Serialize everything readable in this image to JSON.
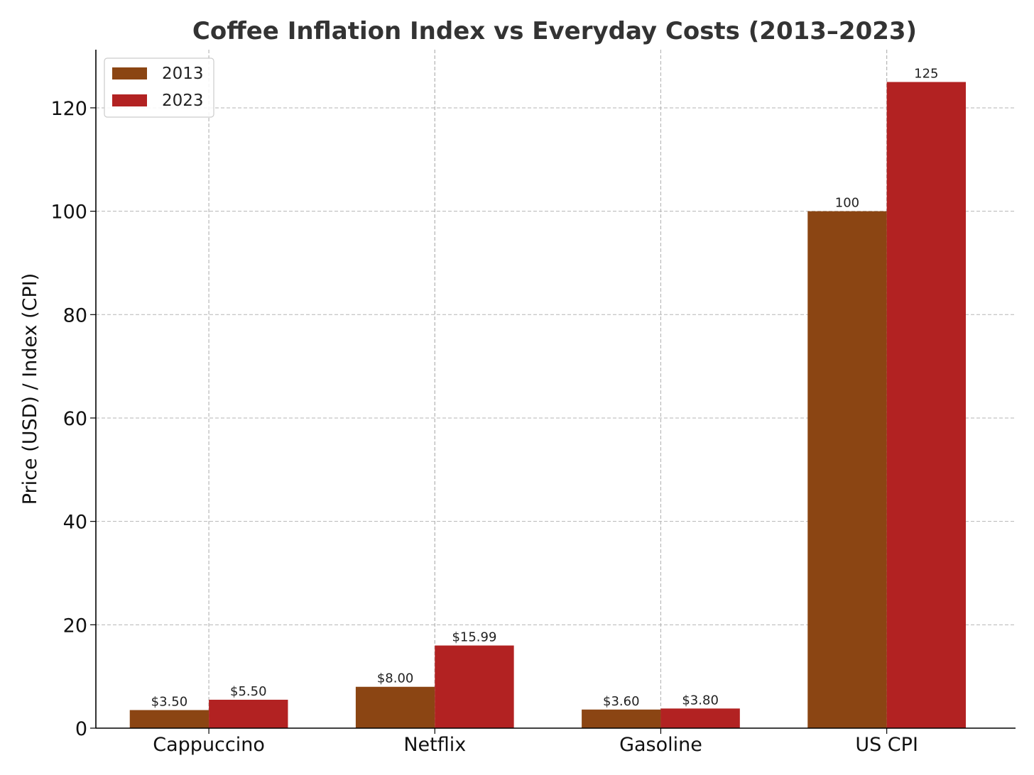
{
  "chart_data": {
    "type": "bar",
    "title": "Coffee Inflation Index vs Everyday Costs (2013–2023)",
    "xlabel": "",
    "ylabel": "Price (USD) / Index (CPI)",
    "categories": [
      "Cappuccino",
      "Netflix",
      "Gasoline",
      "US CPI"
    ],
    "series": [
      {
        "name": "2013",
        "color": "#8b4513",
        "values": [
          3.5,
          8.0,
          3.6,
          100
        ],
        "labels": [
          "$3.50",
          "$8.00",
          "$3.60",
          "100"
        ]
      },
      {
        "name": "2023",
        "color": "#b22222",
        "values": [
          5.5,
          15.99,
          3.8,
          125
        ],
        "labels": [
          "$5.50",
          "$15.99",
          "$3.80",
          "125"
        ]
      }
    ],
    "ylim": [
      0,
      131.25
    ],
    "yticks": [
      0,
      20,
      40,
      60,
      80,
      100,
      120
    ],
    "grid": true,
    "legend_position": "top-left"
  }
}
